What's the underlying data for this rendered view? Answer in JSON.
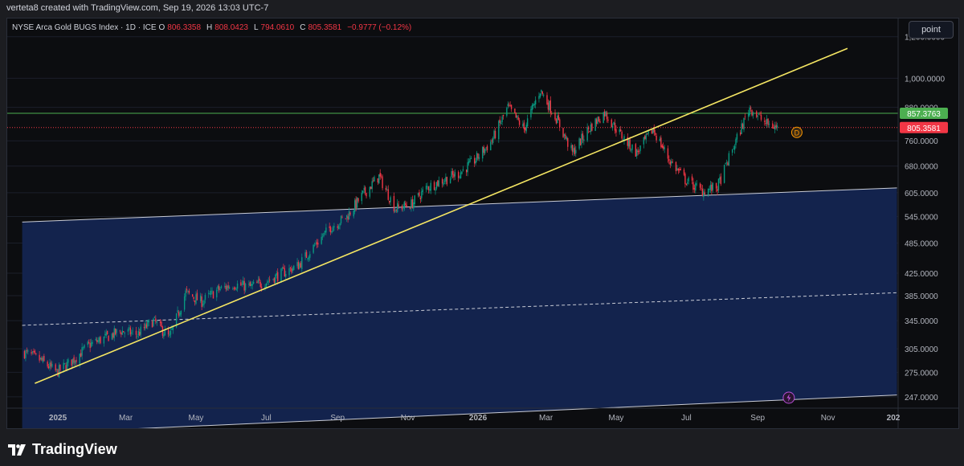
{
  "caption": "verteta8 created with TradingView.com, Sep 19, 2026 13:03 UTC-7",
  "legend": {
    "symbol": "NYSE Arca Gold BUGS Index · 1D · ICE",
    "open_label": "O",
    "open": "806.3358",
    "high_label": "H",
    "high": "808.0423",
    "low_label": "L",
    "low": "794.0610",
    "close_label": "C",
    "close": "805.3581",
    "change": "−0.9777 (−0.12%)"
  },
  "scale_mode": "point",
  "price_axis": {
    "ticks": [
      "1,200.0000",
      "1,000.0000",
      "880.0000",
      "760.0000",
      "680.0000",
      "605.0000",
      "545.0000",
      "485.0000",
      "425.0000",
      "385.0000",
      "345.0000",
      "305.0000",
      "275.0000",
      "247.0000"
    ],
    "tick_values": [
      1200,
      1000,
      880,
      760,
      680,
      605,
      545,
      485,
      425,
      385,
      345,
      305,
      275,
      247
    ],
    "scale": "log"
  },
  "time_axis": {
    "ticks": [
      "2025",
      "Mar",
      "May",
      "Jul",
      "Sep",
      "Nov",
      "2026",
      "Mar",
      "May",
      "Jul",
      "Sep",
      "Nov",
      "202"
    ],
    "bold": [
      true,
      false,
      false,
      false,
      false,
      false,
      true,
      false,
      false,
      false,
      false,
      false,
      true
    ]
  },
  "markers": {
    "resistance_label": "857.3763",
    "current_label": "805.3581",
    "dividend_badge": "D"
  },
  "footer": {
    "brand": "TradingView"
  },
  "colors": {
    "up": "#089981",
    "down": "#f23645",
    "trendline": "#f5e663",
    "channel_fill": "#13234d",
    "resistance": "#4caf50",
    "current": "#f23645"
  },
  "chart_data": {
    "type": "candlestick",
    "title": "",
    "xlabel": "",
    "ylabel": "",
    "ylim": [
      235,
      1300
    ],
    "series": [
      {
        "name": "NYSE Arca Gold BUGS Index",
        "x": [
          "2024-12-03",
          "2024-12-17",
          "2024-12-31",
          "2025-01-14",
          "2025-01-28",
          "2025-02-11",
          "2025-02-25",
          "2025-03-11",
          "2025-03-25",
          "2025-04-08",
          "2025-04-22",
          "2025-05-06",
          "2025-05-20",
          "2025-06-03",
          "2025-06-17",
          "2025-07-01",
          "2025-07-15",
          "2025-07-29",
          "2025-08-12",
          "2025-08-26",
          "2025-09-09",
          "2025-09-23",
          "2025-10-07",
          "2025-10-21",
          "2025-11-04",
          "2025-11-18",
          "2025-12-02",
          "2025-12-16",
          "2025-12-30",
          "2026-01-13",
          "2026-01-27",
          "2026-02-10",
          "2026-02-24",
          "2026-03-10",
          "2026-03-24",
          "2026-04-07",
          "2026-04-21",
          "2026-05-05",
          "2026-05-19",
          "2026-06-02",
          "2026-06-16",
          "2026-06-30",
          "2026-07-14",
          "2026-07-28",
          "2026-08-11",
          "2026-08-25",
          "2026-09-08",
          "2026-09-18"
        ],
        "close": [
          300,
          290,
          275,
          290,
          310,
          320,
          330,
          325,
          345,
          320,
          390,
          375,
          395,
          405,
          400,
          410,
          425,
          440,
          480,
          520,
          545,
          600,
          650,
          565,
          575,
          620,
          640,
          660,
          700,
          760,
          880,
          800,
          950,
          840,
          720,
          800,
          860,
          780,
          720,
          800,
          700,
          640,
          610,
          620,
          740,
          880,
          820,
          805
        ]
      }
    ],
    "resistance": 857.3763,
    "last_price": 805.3581,
    "trendline": [
      {
        "date": "2024-12-12",
        "value": 262
      },
      {
        "date": "2026-11-18",
        "value": 1140
      }
    ],
    "channel_upper": [
      {
        "date": "2024-12-01",
        "value": 532
      },
      {
        "date": "2026-12-31",
        "value": 618
      }
    ],
    "channel_mid": [
      {
        "date": "2024-12-01",
        "value": 338
      },
      {
        "date": "2026-12-31",
        "value": 390
      }
    ],
    "channel_lower": [
      {
        "date": "2024-12-01",
        "value": 210
      },
      {
        "date": "2026-12-31",
        "value": 249
      }
    ]
  }
}
